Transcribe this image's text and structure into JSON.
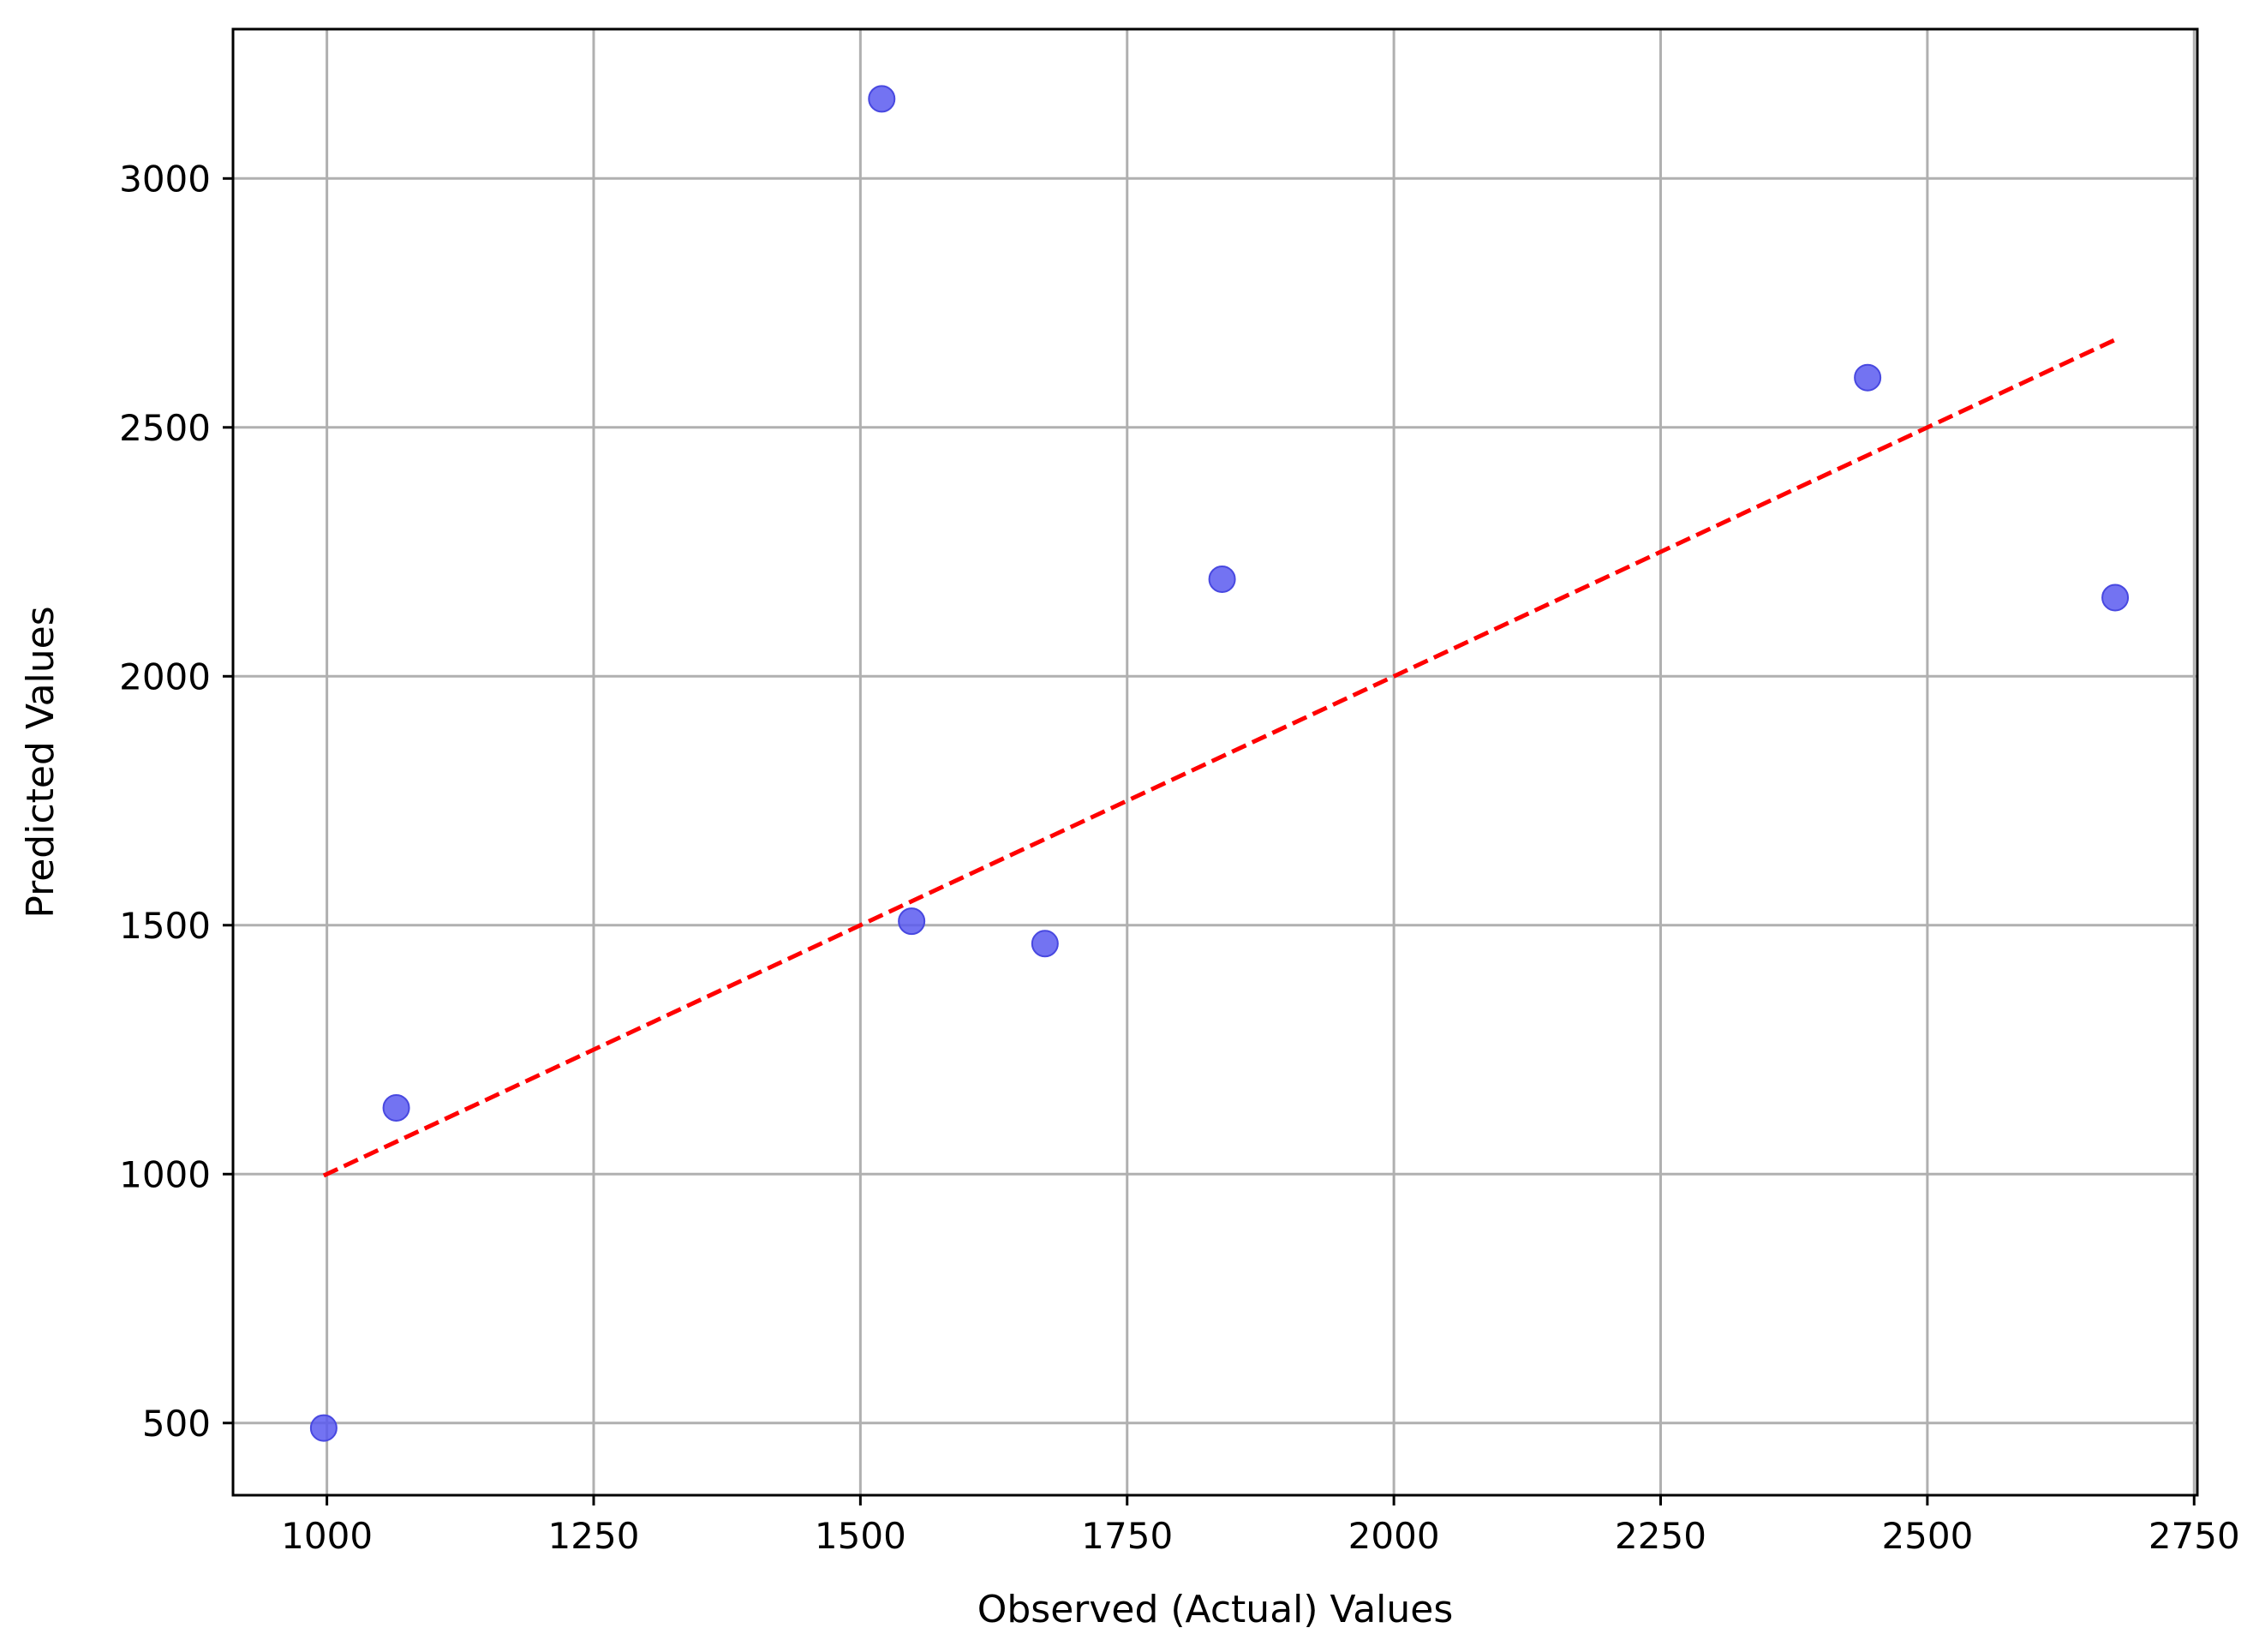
{
  "chart_data": {
    "type": "scatter",
    "title": "",
    "xlabel": "Observed (Actual) Values",
    "ylabel": "Predicted Values",
    "xlim": [
      912,
      2753
    ],
    "ylim": [
      355,
      3300
    ],
    "xticks": [
      1000,
      1250,
      1500,
      1750,
      2000,
      2250,
      2500,
      2750
    ],
    "yticks": [
      500,
      1000,
      1500,
      2000,
      2500,
      3000
    ],
    "grid": true,
    "series": [
      {
        "type": "scatter",
        "color": "#5b5bf0",
        "points": [
          {
            "x": 997,
            "y": 490
          },
          {
            "x": 1065,
            "y": 1133
          },
          {
            "x": 1520,
            "y": 3160
          },
          {
            "x": 1548,
            "y": 1508
          },
          {
            "x": 1673,
            "y": 1463
          },
          {
            "x": 1839,
            "y": 2195
          },
          {
            "x": 2444,
            "y": 2600
          },
          {
            "x": 2676,
            "y": 2158
          }
        ]
      },
      {
        "type": "line",
        "color": "#ff0000",
        "dashed": true,
        "points": [
          {
            "x": 997,
            "y": 997
          },
          {
            "x": 2676,
            "y": 2676
          }
        ]
      }
    ]
  }
}
